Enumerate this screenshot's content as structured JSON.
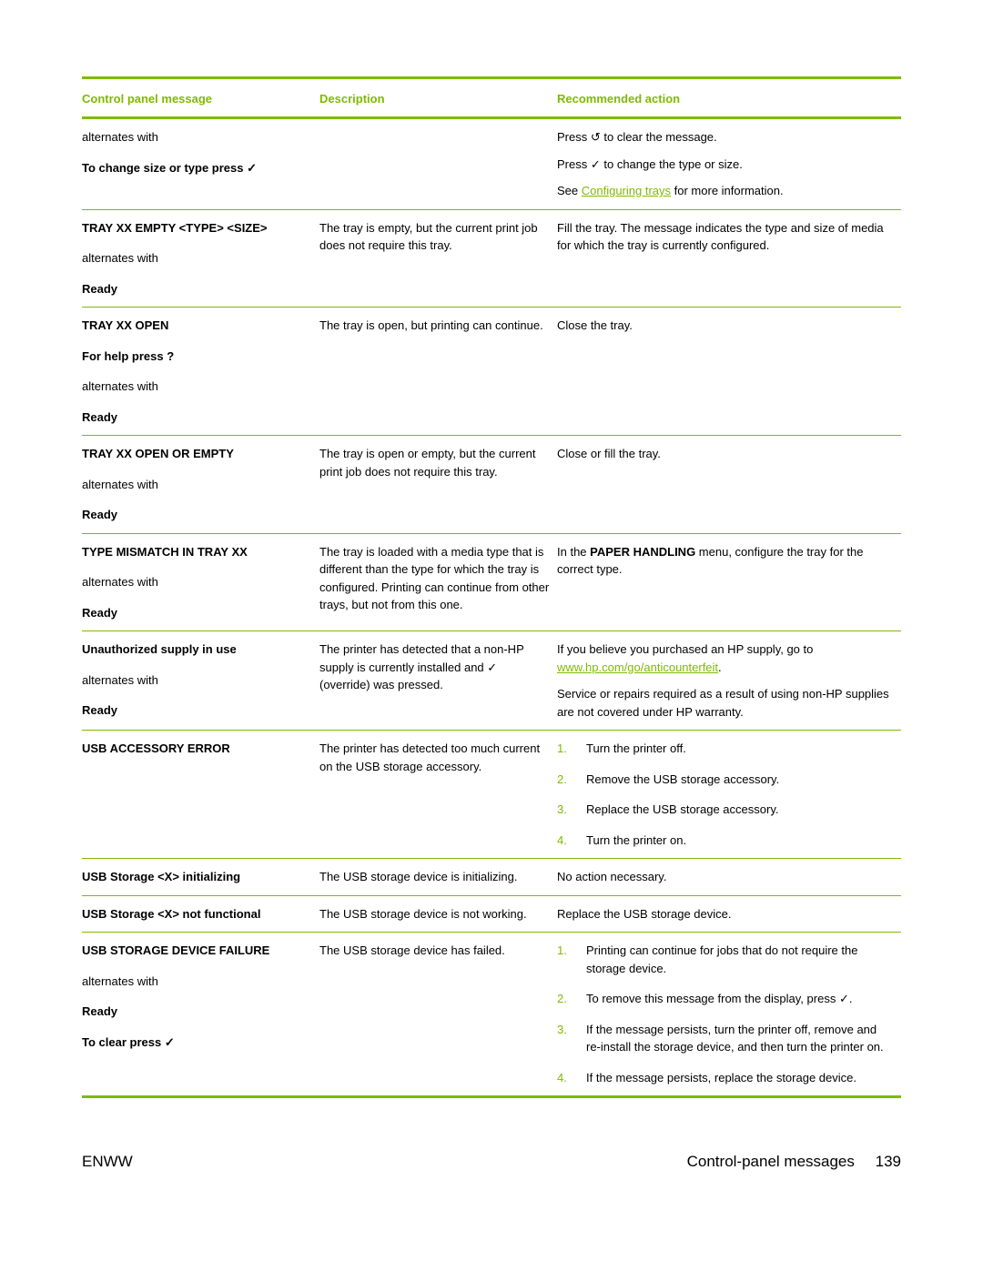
{
  "colors": {
    "accent": "#7fba00",
    "text": "#000000",
    "bg": "#ffffff"
  },
  "table": {
    "headers": [
      "Control panel message",
      "Description",
      "Recommended action"
    ]
  },
  "rows": [
    {
      "msg": [
        {
          "t": "alternates with"
        },
        {
          "t": "To change size or type press ",
          "b": true,
          "icon": "✓"
        }
      ],
      "desc": "",
      "action_type": "paras",
      "action": [
        {
          "pre": "Press ",
          "icon": "↺",
          "post": " to clear the message."
        },
        {
          "pre": "Press ",
          "icon": "✓",
          "post": " to change the type or size."
        },
        {
          "text": "See ",
          "link": "Configuring trays",
          "after": " for more information."
        }
      ]
    },
    {
      "msg": [
        {
          "t": "TRAY XX EMPTY <TYPE> <SIZE>",
          "b": true
        },
        {
          "t": "alternates with"
        },
        {
          "t": "Ready",
          "b": true
        }
      ],
      "desc": "The tray is empty, but the current print job does not require this tray.",
      "action_type": "text",
      "action_text": "Fill the tray. The message indicates the type and size of media for which the tray is currently configured."
    },
    {
      "msg": [
        {
          "t": "TRAY XX OPEN",
          "b": true
        },
        {
          "t": "For help press  ",
          "b": true,
          "icon": "?"
        },
        {
          "t": "alternates with"
        },
        {
          "t": "Ready",
          "b": true
        }
      ],
      "desc": "The tray is open, but printing can continue.",
      "action_type": "text",
      "action_text": "Close the tray."
    },
    {
      "msg": [
        {
          "t": "TRAY XX OPEN OR EMPTY",
          "b": true
        },
        {
          "t": "alternates with"
        },
        {
          "t": "Ready",
          "b": true
        }
      ],
      "desc": "The tray is open or empty, but the current print job does not require this tray.",
      "action_type": "text",
      "action_text": "Close or fill the tray."
    },
    {
      "msg": [
        {
          "t": "TYPE MISMATCH IN TRAY XX",
          "b": true
        },
        {
          "t": "alternates with"
        },
        {
          "t": "Ready",
          "b": true
        }
      ],
      "desc": "The tray is loaded with a media type that is different than the type for which the tray is configured. Printing can continue from other trays, but not from this one.",
      "action_type": "rich1",
      "action_rich": {
        "pre": "In the ",
        "bold": "PAPER HANDLING",
        "post": " menu, configure the tray for the correct type."
      }
    },
    {
      "msg": [
        {
          "t": "Unauthorized supply in use",
          "b": true
        },
        {
          "t": "alternates with"
        },
        {
          "t": "Ready",
          "b": true
        }
      ],
      "desc_pre": "The printer has detected that a non-HP supply is currently installed and ",
      "desc_icon": "✓",
      "desc_post": " (override) was pressed.",
      "action_type": "paras2",
      "action_p1_pre": "If you believe you purchased an HP supply, go to ",
      "action_p1_link": "www.hp.com/go/anticounterfeit",
      "action_p1_post": ".",
      "action_p2": "Service or repairs required as a result of using non-HP supplies are not covered under HP warranty."
    },
    {
      "msg": [
        {
          "t": "USB ACCESSORY ERROR",
          "b": true
        }
      ],
      "desc": "The printer has detected too much current on the USB storage accessory.",
      "action_type": "ol",
      "action_items": [
        "Turn the printer off.",
        "Remove the USB storage accessory.",
        "Replace the USB storage accessory.",
        "Turn the printer on."
      ]
    },
    {
      "msg": [
        {
          "t": "USB Storage <X> initializing",
          "b": true
        }
      ],
      "desc": "The USB storage device is initializing.",
      "action_type": "text",
      "action_text": "No action necessary."
    },
    {
      "msg": [
        {
          "t": "USB Storage <X> not functional",
          "b": true
        }
      ],
      "desc": "The USB storage device is not working.",
      "action_type": "text",
      "action_text": "Replace the USB storage device."
    },
    {
      "msg": [
        {
          "t": "USB STORAGE DEVICE FAILURE",
          "b": true
        },
        {
          "t": "alternates with"
        },
        {
          "t": "Ready",
          "b": true
        },
        {
          "t": "To clear press  ",
          "b": true,
          "icon": "✓"
        }
      ],
      "desc": "The USB storage device has failed.",
      "action_type": "ol2",
      "action_items2": [
        {
          "t": "Printing can continue for jobs that do not require the storage device."
        },
        {
          "pre": "To remove this message from the display, press ",
          "icon": "✓",
          "post": "."
        },
        {
          "t": "If the message persists, turn the printer off, remove and re-install the storage device, and then turn the printer on."
        },
        {
          "t": "If the message persists, replace the storage device."
        }
      ]
    }
  ],
  "footer": {
    "left": "ENWW",
    "right": "Control-panel messages",
    "page": "139"
  }
}
